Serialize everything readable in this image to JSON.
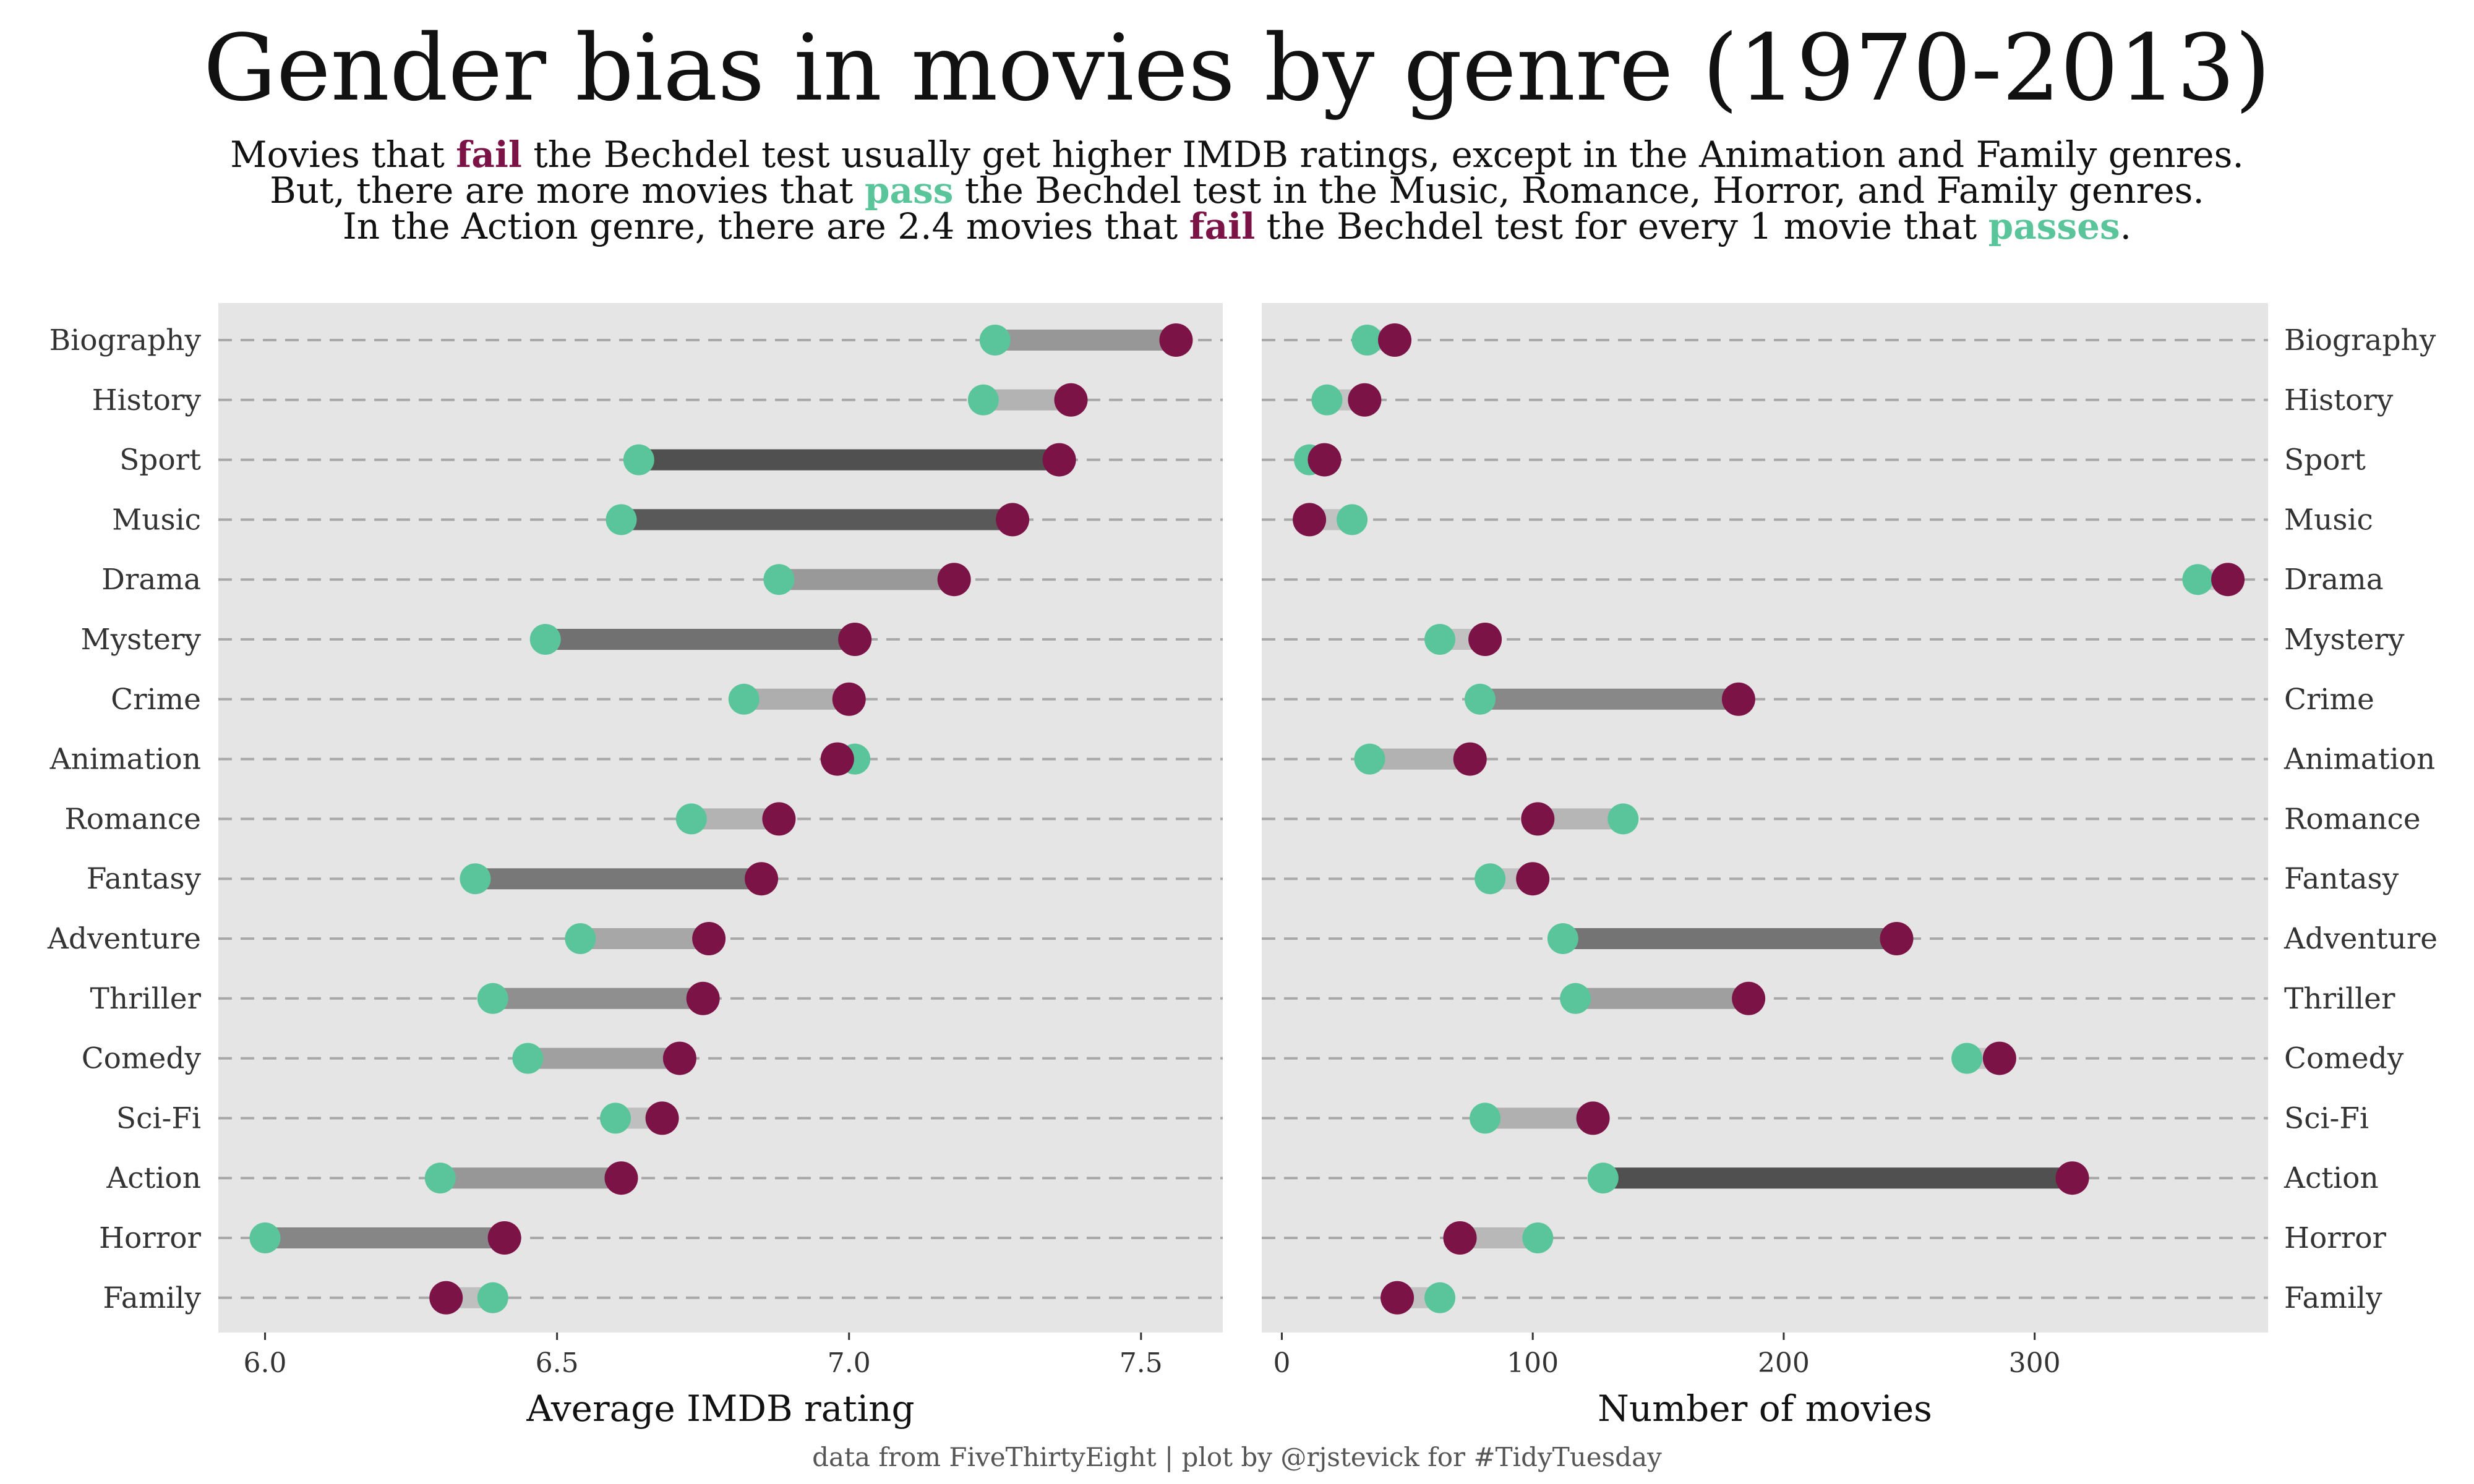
{
  "title": "Gender bias in movies by genre (1970-2013)",
  "subtitle": {
    "line1": {
      "a": "Movies that ",
      "fail": "fail",
      "b": " the Bechdel test usually get higher IMDB ratings, except in the Animation and Family genres."
    },
    "line2": {
      "a": "But, there are more movies that ",
      "pass": "pass",
      "b": " the Bechdel test in the Music, Romance, Horror, and Family genres."
    },
    "line3": {
      "a": "In the Action genre, there are 2.4 movies that ",
      "fail": "fail",
      "b": " the Bechdel test for every 1 movie that ",
      "passes": "passes",
      "c": "."
    }
  },
  "caption": "data from FiveThirtyEight | plot by @rjstevick for #TidyTuesday",
  "colors": {
    "fail": "#7c1347",
    "pass": "#5ac59b",
    "panel": "#e5e5e5",
    "grid": "#a8a8a8"
  },
  "chart_data": [
    {
      "type": "dumbbell",
      "xlabel": "Average IMDB rating",
      "xlim": [
        5.92,
        7.64
      ],
      "xticks": [
        6.0,
        6.5,
        7.0,
        7.5
      ],
      "tick_labels": [
        "6.0",
        "6.5",
        "7.0",
        "7.5"
      ],
      "genres": [
        "Biography",
        "History",
        "Sport",
        "Music",
        "Drama",
        "Mystery",
        "Crime",
        "Animation",
        "Romance",
        "Fantasy",
        "Adventure",
        "Thriller",
        "Comedy",
        "Sci-Fi",
        "Action",
        "Horror",
        "Family"
      ],
      "series": [
        {
          "name": "pass",
          "values": [
            7.25,
            7.23,
            6.64,
            6.61,
            6.88,
            6.48,
            6.82,
            7.01,
            6.73,
            6.36,
            6.54,
            6.39,
            6.45,
            6.6,
            6.3,
            6.0,
            6.39
          ]
        },
        {
          "name": "fail",
          "values": [
            7.56,
            7.38,
            7.36,
            7.28,
            7.18,
            7.01,
            7.0,
            6.98,
            6.88,
            6.85,
            6.76,
            6.75,
            6.71,
            6.68,
            6.61,
            6.41,
            6.31
          ]
        }
      ]
    },
    {
      "type": "dumbbell",
      "xlabel": "Number of movies",
      "xlim": [
        -8,
        393
      ],
      "xticks": [
        0,
        100,
        200,
        300
      ],
      "tick_labels": [
        "0",
        "100",
        "200",
        "300"
      ],
      "genres": [
        "Biography",
        "History",
        "Sport",
        "Music",
        "Drama",
        "Mystery",
        "Crime",
        "Animation",
        "Romance",
        "Fantasy",
        "Adventure",
        "Thriller",
        "Comedy",
        "Sci-Fi",
        "Action",
        "Horror",
        "Family"
      ],
      "series": [
        {
          "name": "pass",
          "values": [
            34,
            18,
            11,
            28,
            365,
            63,
            79,
            35,
            136,
            83,
            112,
            117,
            273,
            81,
            128,
            102,
            63
          ]
        },
        {
          "name": "fail",
          "values": [
            45,
            33,
            17,
            11,
            377,
            81,
            182,
            75,
            102,
            100,
            245,
            186,
            286,
            124,
            315,
            71,
            46
          ]
        }
      ]
    }
  ]
}
